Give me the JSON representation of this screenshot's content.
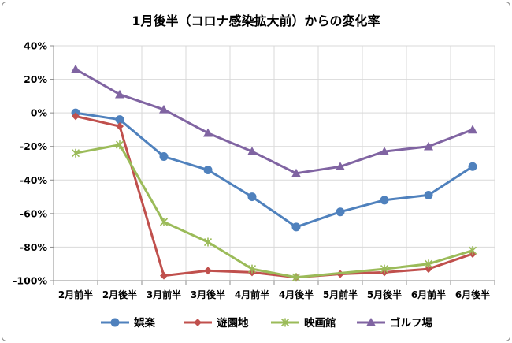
{
  "chart_data": {
    "type": "line",
    "title": "1月後半（コロナ感染拡大前）からの変化率",
    "categories": [
      "2月前半",
      "2月後半",
      "3月前半",
      "3月後半",
      "4月前半",
      "4月後半",
      "5月前半",
      "5月後半",
      "6月前半",
      "6月後半"
    ],
    "y_ticks": [
      "40%",
      "20%",
      "0%",
      "-20%",
      "-40%",
      "-60%",
      "-80%",
      "-100%"
    ],
    "ylim": [
      -100,
      40
    ],
    "y_unit": "%",
    "grid": true,
    "legend_position": "bottom",
    "series": [
      {
        "name": "娯楽",
        "color": "#4f81bd",
        "marker": "circle",
        "values": [
          0,
          -4,
          -26,
          -34,
          -50,
          -68,
          -59,
          -52,
          -49,
          -32
        ]
      },
      {
        "name": "遊園地",
        "color": "#c0504d",
        "marker": "diamond",
        "values": [
          -2,
          -8,
          -97,
          -94,
          -95,
          -98,
          -96,
          -95,
          -93,
          -84
        ]
      },
      {
        "name": "映画館",
        "color": "#9bbb59",
        "marker": "star",
        "values": [
          -24,
          -19,
          -65,
          -77,
          -93,
          -98,
          null,
          -93,
          -90,
          -82
        ]
      },
      {
        "name": "ゴルフ場",
        "color": "#8064a2",
        "marker": "triangle",
        "values": [
          26,
          11,
          2,
          -12,
          -23,
          -36,
          -32,
          -23,
          -20,
          -10
        ]
      }
    ]
  }
}
